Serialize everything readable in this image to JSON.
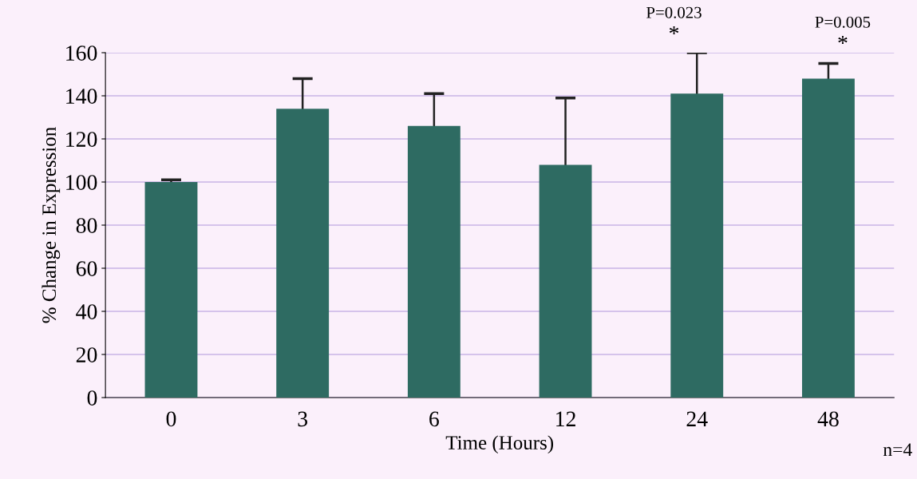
{
  "chart_data": {
    "type": "bar",
    "xlabel": "Time (Hours)",
    "ylabel": "% Change in Expression",
    "categories": [
      "0",
      "3",
      "6",
      "12",
      "24",
      "48"
    ],
    "values": [
      100,
      134,
      126,
      108,
      141,
      148
    ],
    "errors": [
      1,
      14,
      15,
      31,
      19,
      7
    ],
    "color": "#2e6b62",
    "ylim": [
      0,
      160
    ],
    "yticks": [
      0,
      20,
      40,
      60,
      80,
      100,
      120,
      140,
      160
    ],
    "grid": "y",
    "annotations": [
      "*",
      "P=0.023",
      "*",
      "P=0.005",
      "n=4"
    ]
  }
}
